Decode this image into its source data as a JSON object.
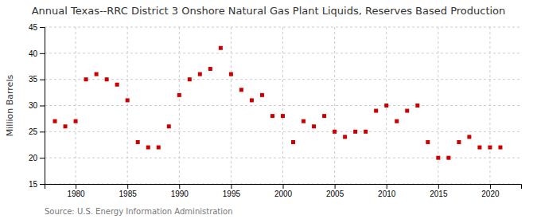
{
  "chart_data": {
    "type": "scatter",
    "title": "Annual Texas--RRC District 3 Onshore Natural Gas Plant Liquids, Reserves Based Production",
    "ylabel": "Million Barrels",
    "source": "Source: U.S. Energy Information Administration",
    "x": [
      1978,
      1979,
      1980,
      1981,
      1982,
      1983,
      1984,
      1985,
      1986,
      1987,
      1988,
      1989,
      1990,
      1991,
      1992,
      1993,
      1994,
      1995,
      1996,
      1997,
      1998,
      1999,
      2000,
      2001,
      2002,
      2003,
      2004,
      2005,
      2006,
      2007,
      2008,
      2009,
      2010,
      2011,
      2012,
      2013,
      2014,
      2015,
      2016,
      2017,
      2018,
      2019,
      2020,
      2021
    ],
    "values": [
      27,
      26,
      27,
      35,
      36,
      35,
      34,
      31,
      23,
      22,
      22,
      26,
      32,
      35,
      36,
      37,
      41,
      36,
      33,
      31,
      32,
      28,
      28,
      23,
      27,
      26,
      28,
      25,
      24,
      25,
      25,
      29,
      30,
      27,
      29,
      30,
      23,
      20,
      20,
      23,
      24,
      22,
      22,
      22
    ],
    "color": "#cc0000",
    "marker": "square",
    "xlim": [
      1977,
      2023
    ],
    "xticks": [
      1980,
      1985,
      1990,
      1995,
      2000,
      2005,
      2010,
      2015,
      2020
    ],
    "ylim": [
      15,
      45
    ],
    "yticks": [
      15,
      20,
      25,
      30,
      35,
      40,
      45
    ],
    "grid": true
  }
}
